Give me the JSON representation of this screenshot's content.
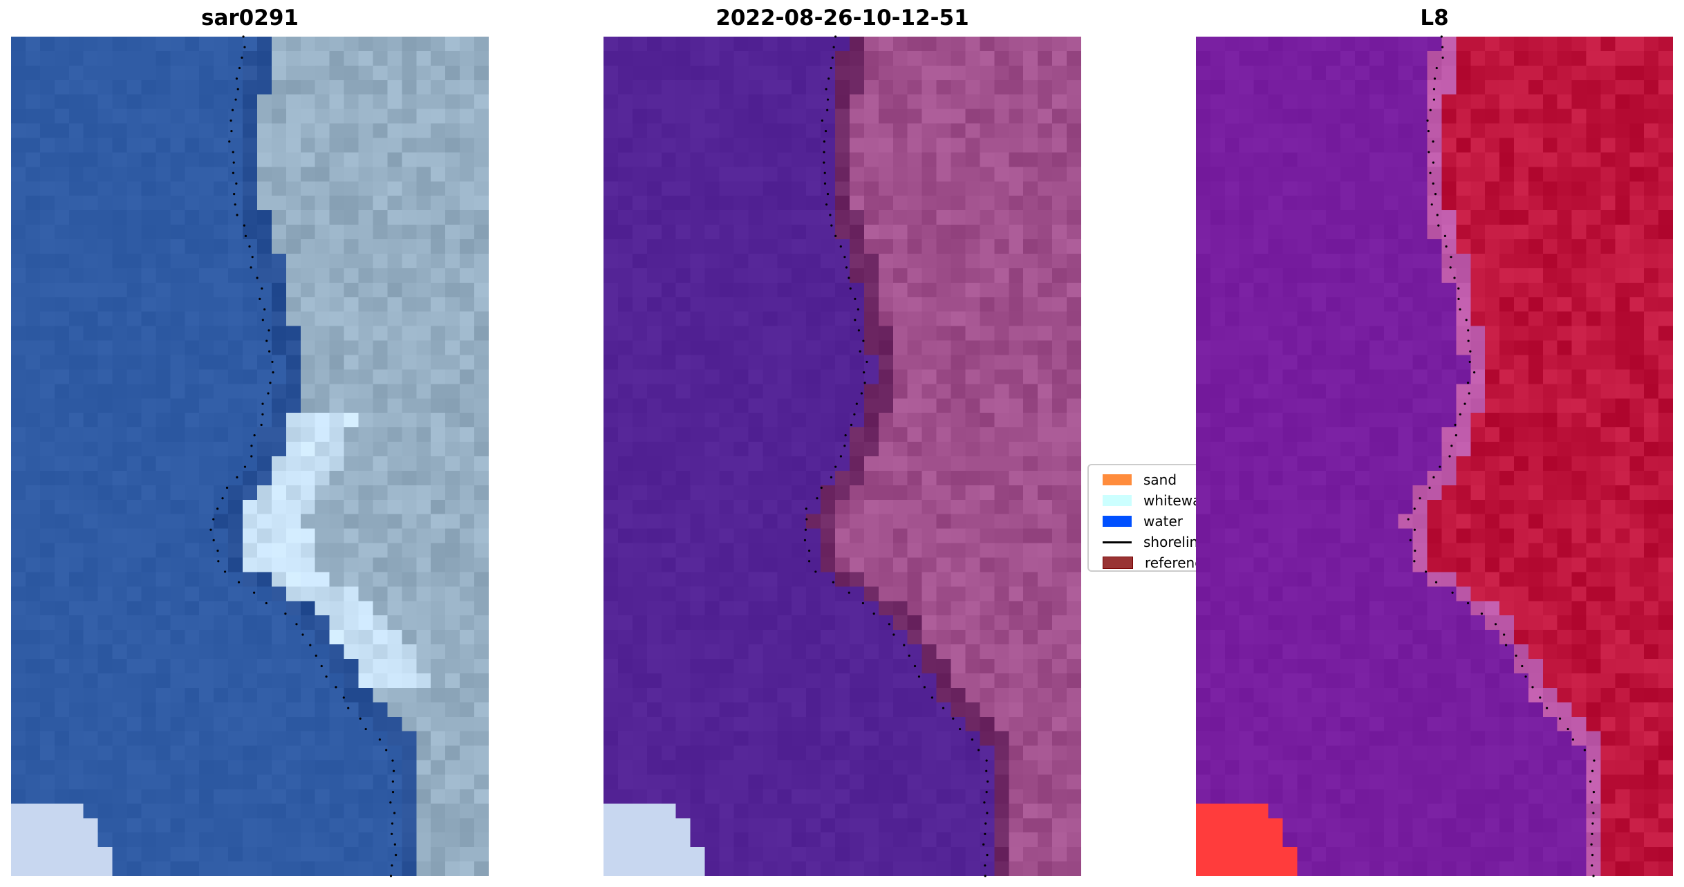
{
  "chart_data": {
    "type": "heatmap",
    "panels": [
      {
        "title": "sar0291"
      },
      {
        "title": "2022-08-26-10-12-51"
      },
      {
        "title": "L8"
      }
    ],
    "axes_visible": false,
    "legend": {
      "placement": "center, between panels 2 and 3",
      "entries": [
        {
          "label": "sand",
          "color": "#ff8c3c",
          "kind": "patch"
        },
        {
          "label": "whitewater",
          "color": "#ccffff",
          "kind": "patch"
        },
        {
          "label": "water",
          "color": "#0050ff",
          "kind": "patch"
        },
        {
          "label": "shoreline",
          "color": "#000000",
          "kind": "line"
        },
        {
          "label": "reference",
          "color": "#993333",
          "kind": "patch"
        }
      ]
    }
  }
}
